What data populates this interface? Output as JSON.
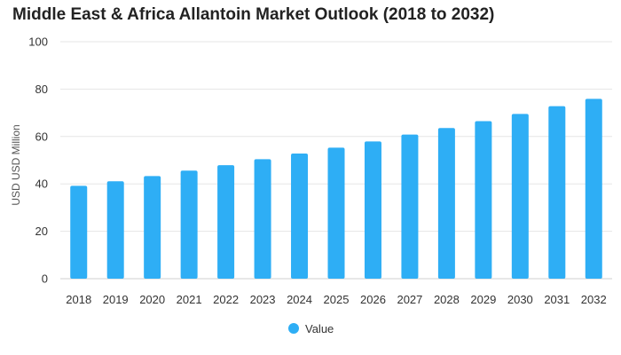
{
  "chart_data": {
    "type": "bar",
    "title": "Middle East & Africa Allantoin Market Outlook (2018 to 2032)",
    "xlabel": "",
    "ylabel": "USD USD Million",
    "ylim": [
      0,
      100
    ],
    "yticks": [
      0,
      20,
      40,
      60,
      80,
      100
    ],
    "grid": true,
    "legend_position": "bottom-center",
    "categories": [
      "2018",
      "2019",
      "2020",
      "2021",
      "2022",
      "2023",
      "2024",
      "2025",
      "2026",
      "2027",
      "2028",
      "2029",
      "2030",
      "2031",
      "2032"
    ],
    "series": [
      {
        "name": "Value",
        "color": "#2eaef5",
        "values": [
          39.2,
          41.1,
          43.3,
          45.6,
          47.9,
          50.4,
          52.8,
          55.3,
          57.9,
          60.8,
          63.6,
          66.5,
          69.5,
          72.8,
          75.9
        ]
      }
    ]
  }
}
